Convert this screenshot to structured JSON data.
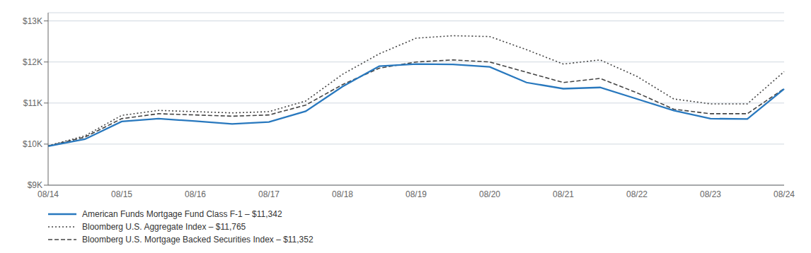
{
  "chart_data": {
    "type": "line",
    "categories": [
      "08/14",
      null,
      "08/15",
      null,
      "08/16",
      null,
      "08/17",
      null,
      "08/18",
      null,
      "08/19",
      null,
      "08/20",
      null,
      "08/21",
      null,
      "08/22",
      null,
      "08/23",
      null,
      "08/24"
    ],
    "series": [
      {
        "name": "American Funds Mortgage Fund Class F-1 – $11,342",
        "color": "#2878be",
        "line_style": "solid",
        "values": [
          9950,
          10120,
          10550,
          10620,
          10560,
          10490,
          10540,
          10800,
          11400,
          11900,
          11950,
          11940,
          11880,
          11500,
          11350,
          11380,
          11100,
          10820,
          10620,
          10610,
          11342
        ]
      },
      {
        "name": "Bloomberg U.S. Aggregate Index – $11,765",
        "color": "#444444",
        "line_style": "dotted",
        "values": [
          9960,
          10200,
          10700,
          10820,
          10790,
          10760,
          10790,
          11050,
          11700,
          12200,
          12580,
          12640,
          12620,
          12300,
          11950,
          12050,
          11650,
          11100,
          10980,
          10980,
          11765
        ]
      },
      {
        "name": "Bloomberg U.S. Mortgage Backed Securities Index – $11,352",
        "color": "#444444",
        "line_style": "dashed",
        "values": [
          9955,
          10170,
          10620,
          10740,
          10710,
          10680,
          10710,
          10950,
          11450,
          11850,
          12000,
          12050,
          12000,
          11750,
          11500,
          11600,
          11250,
          10850,
          10740,
          10740,
          11352
        ]
      }
    ],
    "ylim": [
      9000,
      13200
    ],
    "yticks": [
      {
        "value": 9000,
        "label": "$9K"
      },
      {
        "value": 10000,
        "label": "$10K"
      },
      {
        "value": 11000,
        "label": "$11K"
      },
      {
        "value": 12000,
        "label": "$12K"
      },
      {
        "value": 13000,
        "label": "$13K"
      }
    ],
    "grid": true,
    "legend": "lower left"
  }
}
